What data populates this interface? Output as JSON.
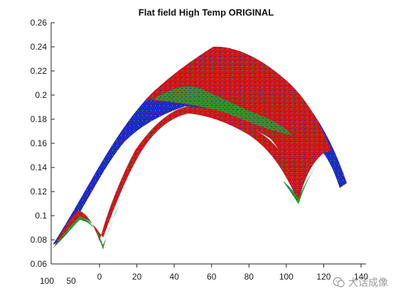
{
  "chart_data": {
    "type": "surface",
    "title": "Flat field High Temp ORIGINAL",
    "xlabel": "",
    "ylabel": "",
    "zlabel": "",
    "zlim": [
      0.06,
      0.26
    ],
    "z_ticks": [
      "0.06",
      "0.08",
      "0.1",
      "0.12",
      "0.14",
      "0.16",
      "0.18",
      "0.2",
      "0.22",
      "0.24",
      "0.26"
    ],
    "z_tick_values": [
      0.06,
      0.08,
      0.1,
      0.12,
      0.14,
      0.16,
      0.18,
      0.2,
      0.22,
      0.24,
      0.26
    ],
    "x_ticks": [
      "0",
      "20",
      "40",
      "60",
      "80",
      "100",
      "120",
      "140"
    ],
    "x_tick_values": [
      0,
      20,
      40,
      60,
      80,
      100,
      120,
      140
    ],
    "y_ticks": [
      "100",
      "50"
    ],
    "y_tick_values": [
      100,
      50
    ],
    "grid": false,
    "colors": {
      "red": "#d01818",
      "blue": "#1c28c8",
      "green": "#22a02a"
    },
    "surface_profile": {
      "x": [
        0,
        20,
        40,
        60,
        80,
        100,
        108,
        120,
        138
      ],
      "front_edge_z": [
        0.072,
        0.135,
        0.188,
        0.205,
        0.19,
        0.152,
        0.112,
        0.148,
        0.122
      ],
      "back_edge_z": [
        0.075,
        0.16,
        0.21,
        0.235,
        0.222,
        0.18,
        0.15,
        0.152,
        0.125
      ]
    }
  },
  "watermark": {
    "text": "大话成像"
  }
}
